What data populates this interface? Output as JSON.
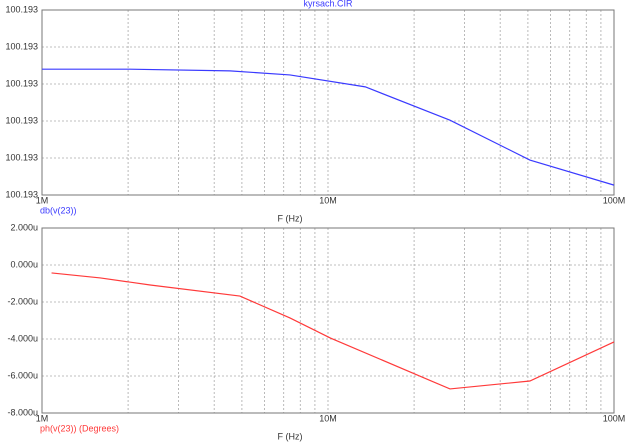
{
  "chart_data": [
    {
      "type": "line",
      "title": "kyrsach.CIR",
      "xlabel": "F (Hz)",
      "log_x": true,
      "grid": true,
      "xlim": [
        1000000,
        100000000
      ],
      "xticks": [
        {
          "value": 1000000,
          "label": "1M"
        },
        {
          "value": 10000000,
          "label": "10M"
        },
        {
          "value": 100000000,
          "label": "100M"
        }
      ],
      "ylim": [
        100.193,
        100.19345
      ],
      "yticks": [
        {
          "value": 100.193,
          "label": "100.193"
        },
        {
          "value": 100.19309,
          "label": "100.193"
        },
        {
          "value": 100.19318,
          "label": "100.193"
        },
        {
          "value": 100.19327,
          "label": "100.193"
        },
        {
          "value": 100.19336,
          "label": "100.193"
        },
        {
          "value": 100.19345,
          "label": "100.193"
        }
      ],
      "x": [
        1000000,
        2030000,
        4540000,
        7360000,
        13500000,
        26700000,
        50800000,
        100000000
      ],
      "series": [
        {
          "name": "db(v(23))",
          "color": "#3a3aff",
          "values": [
            100.193306,
            100.193306,
            100.193302,
            100.193292,
            100.193263,
            100.193182,
            100.193085,
            100.193024
          ]
        }
      ]
    },
    {
      "type": "line",
      "xlabel": "F (Hz)",
      "log_x": true,
      "grid": true,
      "xlim": [
        1000000,
        100000000
      ],
      "xticks": [
        {
          "value": 1000000,
          "label": "1M"
        },
        {
          "value": 10000000,
          "label": "10M"
        },
        {
          "value": 100000000,
          "label": "100M"
        }
      ],
      "ylim": [
        -8,
        2
      ],
      "yticks": [
        {
          "value": -8,
          "label": "-8.000u"
        },
        {
          "value": -6,
          "label": "-6.000u"
        },
        {
          "value": -4,
          "label": "-4.000u"
        },
        {
          "value": -2,
          "label": "-2.000u"
        },
        {
          "value": 0,
          "label": "0.000u"
        },
        {
          "value": 2,
          "label": "2.000u"
        }
      ],
      "x": [
        1080000,
        1600000,
        2390000,
        4920000,
        7360000,
        10200000,
        26700000,
        50800000,
        100000000
      ],
      "series": [
        {
          "name": "ph(v(23)) (Degrees)",
          "color": "#ff3a3a",
          "values": [
            -0.43,
            -0.7,
            -1.08,
            -1.68,
            -2.86,
            -3.95,
            -6.7,
            -6.27,
            -4.16
          ]
        }
      ]
    }
  ]
}
